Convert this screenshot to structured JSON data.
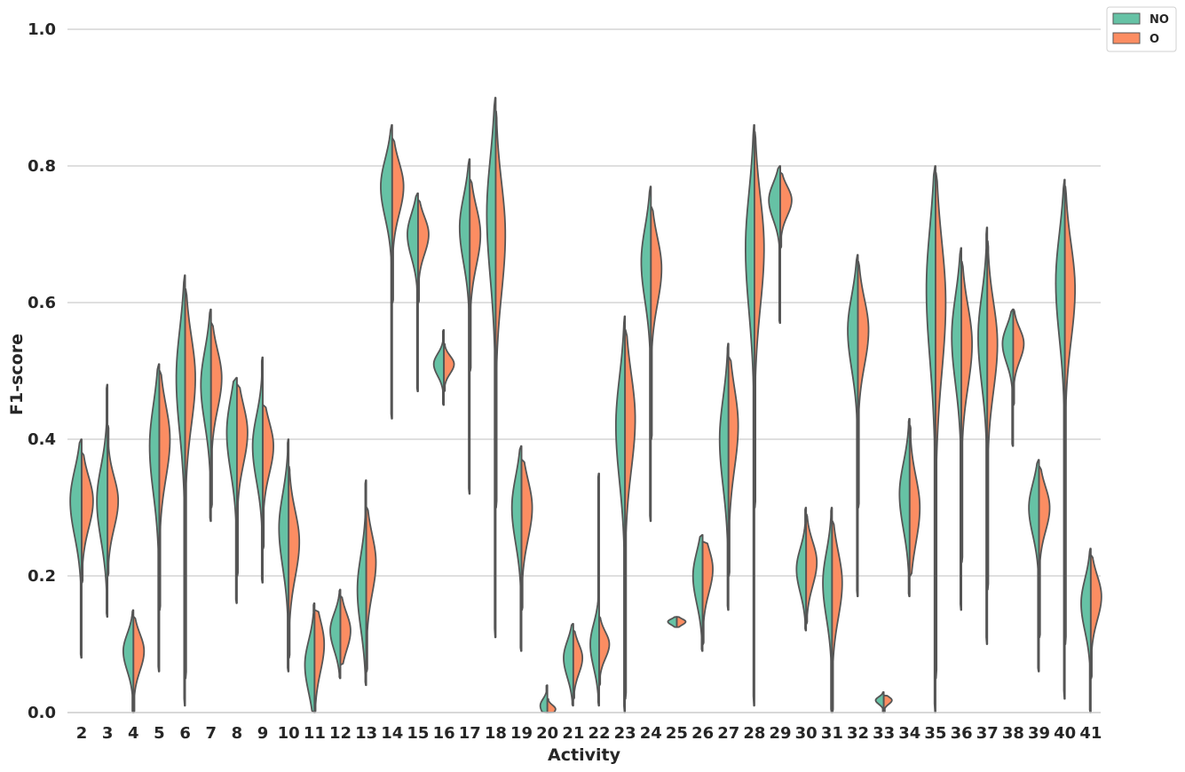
{
  "chart_data": {
    "type": "violin",
    "split": true,
    "xlabel": "Activity",
    "ylabel": "F1-score",
    "ylim": [
      0,
      1
    ],
    "yticks": [
      "0.0",
      "0.2",
      "0.4",
      "0.6",
      "0.8",
      "1.0"
    ],
    "grid": "horizontal",
    "legend_position": "top-right",
    "categories": [
      "2",
      "3",
      "4",
      "5",
      "6",
      "7",
      "8",
      "9",
      "10",
      "11",
      "12",
      "13",
      "14",
      "15",
      "16",
      "17",
      "18",
      "19",
      "20",
      "21",
      "22",
      "23",
      "24",
      "25",
      "26",
      "27",
      "28",
      "29",
      "30",
      "31",
      "32",
      "33",
      "34",
      "35",
      "36",
      "37",
      "38",
      "39",
      "40",
      "41"
    ],
    "series": [
      {
        "name": "NO",
        "color": "#66c2a5"
      },
      {
        "name": "O",
        "color": "#fc8d62"
      }
    ],
    "violins": [
      {
        "no": {
          "min": 0.08,
          "max": 0.4,
          "median": 0.31,
          "spread": 0.045,
          "w": 0.45
        },
        "o": {
          "min": 0.19,
          "max": 0.38,
          "median": 0.31,
          "spread": 0.035,
          "w": 0.45
        }
      },
      {
        "no": {
          "min": 0.14,
          "max": 0.48,
          "median": 0.31,
          "spread": 0.05,
          "w": 0.42
        },
        "o": {
          "min": 0.2,
          "max": 0.42,
          "median": 0.31,
          "spread": 0.035,
          "w": 0.42
        }
      },
      {
        "no": {
          "min": 0.0,
          "max": 0.15,
          "median": 0.09,
          "spread": 0.025,
          "w": 0.4
        },
        "o": {
          "min": 0.0,
          "max": 0.14,
          "median": 0.09,
          "spread": 0.025,
          "w": 0.42
        }
      },
      {
        "no": {
          "min": 0.06,
          "max": 0.51,
          "median": 0.39,
          "spread": 0.06,
          "w": 0.38
        },
        "o": {
          "min": 0.15,
          "max": 0.5,
          "median": 0.4,
          "spread": 0.05,
          "w": 0.42
        }
      },
      {
        "no": {
          "min": 0.01,
          "max": 0.64,
          "median": 0.49,
          "spread": 0.07,
          "w": 0.35
        },
        "o": {
          "min": 0.05,
          "max": 0.62,
          "median": 0.49,
          "spread": 0.06,
          "w": 0.4
        }
      },
      {
        "no": {
          "min": 0.28,
          "max": 0.59,
          "median": 0.48,
          "spread": 0.05,
          "w": 0.4
        },
        "o": {
          "min": 0.3,
          "max": 0.57,
          "median": 0.49,
          "spread": 0.04,
          "w": 0.42
        }
      },
      {
        "no": {
          "min": 0.16,
          "max": 0.49,
          "median": 0.41,
          "spread": 0.05,
          "w": 0.4
        },
        "o": {
          "min": 0.2,
          "max": 0.48,
          "median": 0.41,
          "spread": 0.04,
          "w": 0.42
        }
      },
      {
        "no": {
          "min": 0.19,
          "max": 0.52,
          "median": 0.39,
          "spread": 0.045,
          "w": 0.4
        },
        "o": {
          "min": 0.24,
          "max": 0.45,
          "median": 0.39,
          "spread": 0.035,
          "w": 0.42
        }
      },
      {
        "no": {
          "min": 0.06,
          "max": 0.4,
          "median": 0.27,
          "spread": 0.05,
          "w": 0.38
        },
        "o": {
          "min": 0.08,
          "max": 0.36,
          "median": 0.25,
          "spread": 0.045,
          "w": 0.42
        }
      },
      {
        "no": {
          "min": 0.0,
          "max": 0.16,
          "median": 0.07,
          "spread": 0.035,
          "w": 0.38
        },
        "o": {
          "min": 0.0,
          "max": 0.15,
          "median": 0.1,
          "spread": 0.035,
          "w": 0.38
        }
      },
      {
        "no": {
          "min": 0.05,
          "max": 0.18,
          "median": 0.12,
          "spread": 0.025,
          "w": 0.4
        },
        "o": {
          "min": 0.07,
          "max": 0.17,
          "median": 0.12,
          "spread": 0.025,
          "w": 0.4
        }
      },
      {
        "no": {
          "min": 0.04,
          "max": 0.34,
          "median": 0.18,
          "spread": 0.05,
          "w": 0.35
        },
        "o": {
          "min": 0.06,
          "max": 0.3,
          "median": 0.22,
          "spread": 0.04,
          "w": 0.38
        }
      },
      {
        "no": {
          "min": 0.43,
          "max": 0.86,
          "median": 0.77,
          "spread": 0.04,
          "w": 0.45
        },
        "o": {
          "min": 0.6,
          "max": 0.84,
          "median": 0.77,
          "spread": 0.035,
          "w": 0.45
        }
      },
      {
        "no": {
          "min": 0.47,
          "max": 0.76,
          "median": 0.7,
          "spread": 0.03,
          "w": 0.42
        },
        "o": {
          "min": 0.6,
          "max": 0.75,
          "median": 0.7,
          "spread": 0.025,
          "w": 0.42
        }
      },
      {
        "no": {
          "min": 0.45,
          "max": 0.56,
          "median": 0.51,
          "spread": 0.015,
          "w": 0.4
        },
        "o": {
          "min": 0.47,
          "max": 0.54,
          "median": 0.51,
          "spread": 0.012,
          "w": 0.4
        }
      },
      {
        "no": {
          "min": 0.32,
          "max": 0.81,
          "median": 0.71,
          "spread": 0.045,
          "w": 0.4
        },
        "o": {
          "min": 0.5,
          "max": 0.78,
          "median": 0.7,
          "spread": 0.04,
          "w": 0.42
        }
      },
      {
        "no": {
          "min": 0.11,
          "max": 0.9,
          "median": 0.73,
          "spread": 0.08,
          "w": 0.35
        },
        "o": {
          "min": 0.3,
          "max": 0.88,
          "median": 0.7,
          "spread": 0.075,
          "w": 0.38
        }
      },
      {
        "no": {
          "min": 0.09,
          "max": 0.39,
          "median": 0.3,
          "spread": 0.045,
          "w": 0.38
        },
        "o": {
          "min": 0.15,
          "max": 0.37,
          "median": 0.3,
          "spread": 0.04,
          "w": 0.42
        }
      },
      {
        "no": {
          "min": 0.0,
          "max": 0.04,
          "median": 0.01,
          "spread": 0.01,
          "w": 0.28
        },
        "o": {
          "min": 0.0,
          "max": 0.02,
          "median": 0.005,
          "spread": 0.006,
          "w": 0.32
        }
      },
      {
        "no": {
          "min": 0.01,
          "max": 0.13,
          "median": 0.08,
          "spread": 0.025,
          "w": 0.38
        },
        "o": {
          "min": 0.02,
          "max": 0.12,
          "median": 0.08,
          "spread": 0.02,
          "w": 0.36
        }
      },
      {
        "no": {
          "min": 0.01,
          "max": 0.35,
          "median": 0.1,
          "spread": 0.03,
          "w": 0.35
        },
        "o": {
          "min": 0.04,
          "max": 0.14,
          "median": 0.1,
          "spread": 0.018,
          "w": 0.4
        }
      },
      {
        "no": {
          "min": 0.0,
          "max": 0.58,
          "median": 0.42,
          "spread": 0.07,
          "w": 0.36
        },
        "o": {
          "min": 0.02,
          "max": 0.56,
          "median": 0.43,
          "spread": 0.065,
          "w": 0.4
        }
      },
      {
        "no": {
          "min": 0.28,
          "max": 0.77,
          "median": 0.66,
          "spread": 0.05,
          "w": 0.38
        },
        "o": {
          "min": 0.4,
          "max": 0.74,
          "median": 0.65,
          "spread": 0.045,
          "w": 0.42
        }
      },
      {
        "no": {
          "min": 0.125,
          "max": 0.14,
          "median": 0.133,
          "spread": 0.004,
          "w": 0.35
        },
        "o": {
          "min": 0.125,
          "max": 0.14,
          "median": 0.133,
          "spread": 0.004,
          "w": 0.35
        }
      },
      {
        "no": {
          "min": 0.09,
          "max": 0.26,
          "median": 0.2,
          "spread": 0.035,
          "w": 0.38
        },
        "o": {
          "min": 0.1,
          "max": 0.25,
          "median": 0.21,
          "spread": 0.03,
          "w": 0.4
        }
      },
      {
        "no": {
          "min": 0.15,
          "max": 0.54,
          "median": 0.4,
          "spread": 0.06,
          "w": 0.35
        },
        "o": {
          "min": 0.2,
          "max": 0.52,
          "median": 0.42,
          "spread": 0.055,
          "w": 0.38
        }
      },
      {
        "no": {
          "min": 0.01,
          "max": 0.86,
          "median": 0.68,
          "spread": 0.08,
          "w": 0.35
        },
        "o": {
          "min": 0.3,
          "max": 0.85,
          "median": 0.68,
          "spread": 0.075,
          "w": 0.38
        }
      },
      {
        "no": {
          "min": 0.57,
          "max": 0.8,
          "median": 0.75,
          "spread": 0.025,
          "w": 0.45
        },
        "o": {
          "min": 0.68,
          "max": 0.79,
          "median": 0.75,
          "spread": 0.02,
          "w": 0.45
        }
      },
      {
        "no": {
          "min": 0.12,
          "max": 0.3,
          "median": 0.21,
          "spread": 0.03,
          "w": 0.38
        },
        "o": {
          "min": 0.13,
          "max": 0.29,
          "median": 0.22,
          "spread": 0.03,
          "w": 0.42
        }
      },
      {
        "no": {
          "min": 0.0,
          "max": 0.3,
          "median": 0.19,
          "spread": 0.045,
          "w": 0.36
        },
        "o": {
          "min": 0.0,
          "max": 0.28,
          "median": 0.19,
          "spread": 0.045,
          "w": 0.4
        }
      },
      {
        "no": {
          "min": 0.17,
          "max": 0.67,
          "median": 0.56,
          "spread": 0.05,
          "w": 0.4
        },
        "o": {
          "min": 0.3,
          "max": 0.66,
          "median": 0.56,
          "spread": 0.045,
          "w": 0.42
        }
      },
      {
        "no": {
          "min": 0.0,
          "max": 0.03,
          "median": 0.018,
          "spread": 0.005,
          "w": 0.32
        },
        "o": {
          "min": 0.0,
          "max": 0.025,
          "median": 0.018,
          "spread": 0.005,
          "w": 0.32
        }
      },
      {
        "no": {
          "min": 0.17,
          "max": 0.43,
          "median": 0.32,
          "spread": 0.045,
          "w": 0.4
        },
        "o": {
          "min": 0.2,
          "max": 0.42,
          "median": 0.3,
          "spread": 0.045,
          "w": 0.4
        }
      },
      {
        "no": {
          "min": 0.0,
          "max": 0.8,
          "median": 0.62,
          "spread": 0.09,
          "w": 0.36
        },
        "o": {
          "min": 0.05,
          "max": 0.79,
          "median": 0.6,
          "spread": 0.09,
          "w": 0.4
        }
      },
      {
        "no": {
          "min": 0.15,
          "max": 0.68,
          "median": 0.55,
          "spread": 0.06,
          "w": 0.38
        },
        "o": {
          "min": 0.22,
          "max": 0.66,
          "median": 0.54,
          "spread": 0.055,
          "w": 0.42
        }
      },
      {
        "no": {
          "min": 0.1,
          "max": 0.71,
          "median": 0.55,
          "spread": 0.06,
          "w": 0.36
        },
        "o": {
          "min": 0.18,
          "max": 0.69,
          "median": 0.54,
          "spread": 0.06,
          "w": 0.4
        }
      },
      {
        "no": {
          "min": 0.39,
          "max": 0.59,
          "median": 0.54,
          "spread": 0.025,
          "w": 0.42
        },
        "o": {
          "min": 0.45,
          "max": 0.59,
          "median": 0.54,
          "spread": 0.022,
          "w": 0.42
        }
      },
      {
        "no": {
          "min": 0.06,
          "max": 0.37,
          "median": 0.3,
          "spread": 0.035,
          "w": 0.4
        },
        "o": {
          "min": 0.11,
          "max": 0.36,
          "median": 0.3,
          "spread": 0.03,
          "w": 0.42
        }
      },
      {
        "no": {
          "min": 0.02,
          "max": 0.78,
          "median": 0.63,
          "spread": 0.07,
          "w": 0.36
        },
        "o": {
          "min": 0.1,
          "max": 0.77,
          "median": 0.62,
          "spread": 0.065,
          "w": 0.4
        }
      },
      {
        "no": {
          "min": 0.0,
          "max": 0.24,
          "median": 0.16,
          "spread": 0.035,
          "w": 0.38
        },
        "o": {
          "min": 0.05,
          "max": 0.23,
          "median": 0.17,
          "spread": 0.03,
          "w": 0.42
        }
      }
    ]
  },
  "colors": {
    "no": "#66c2a5",
    "o": "#fc8d62",
    "outline": "#555555",
    "grid": "#cccccc",
    "text": "#262626"
  }
}
